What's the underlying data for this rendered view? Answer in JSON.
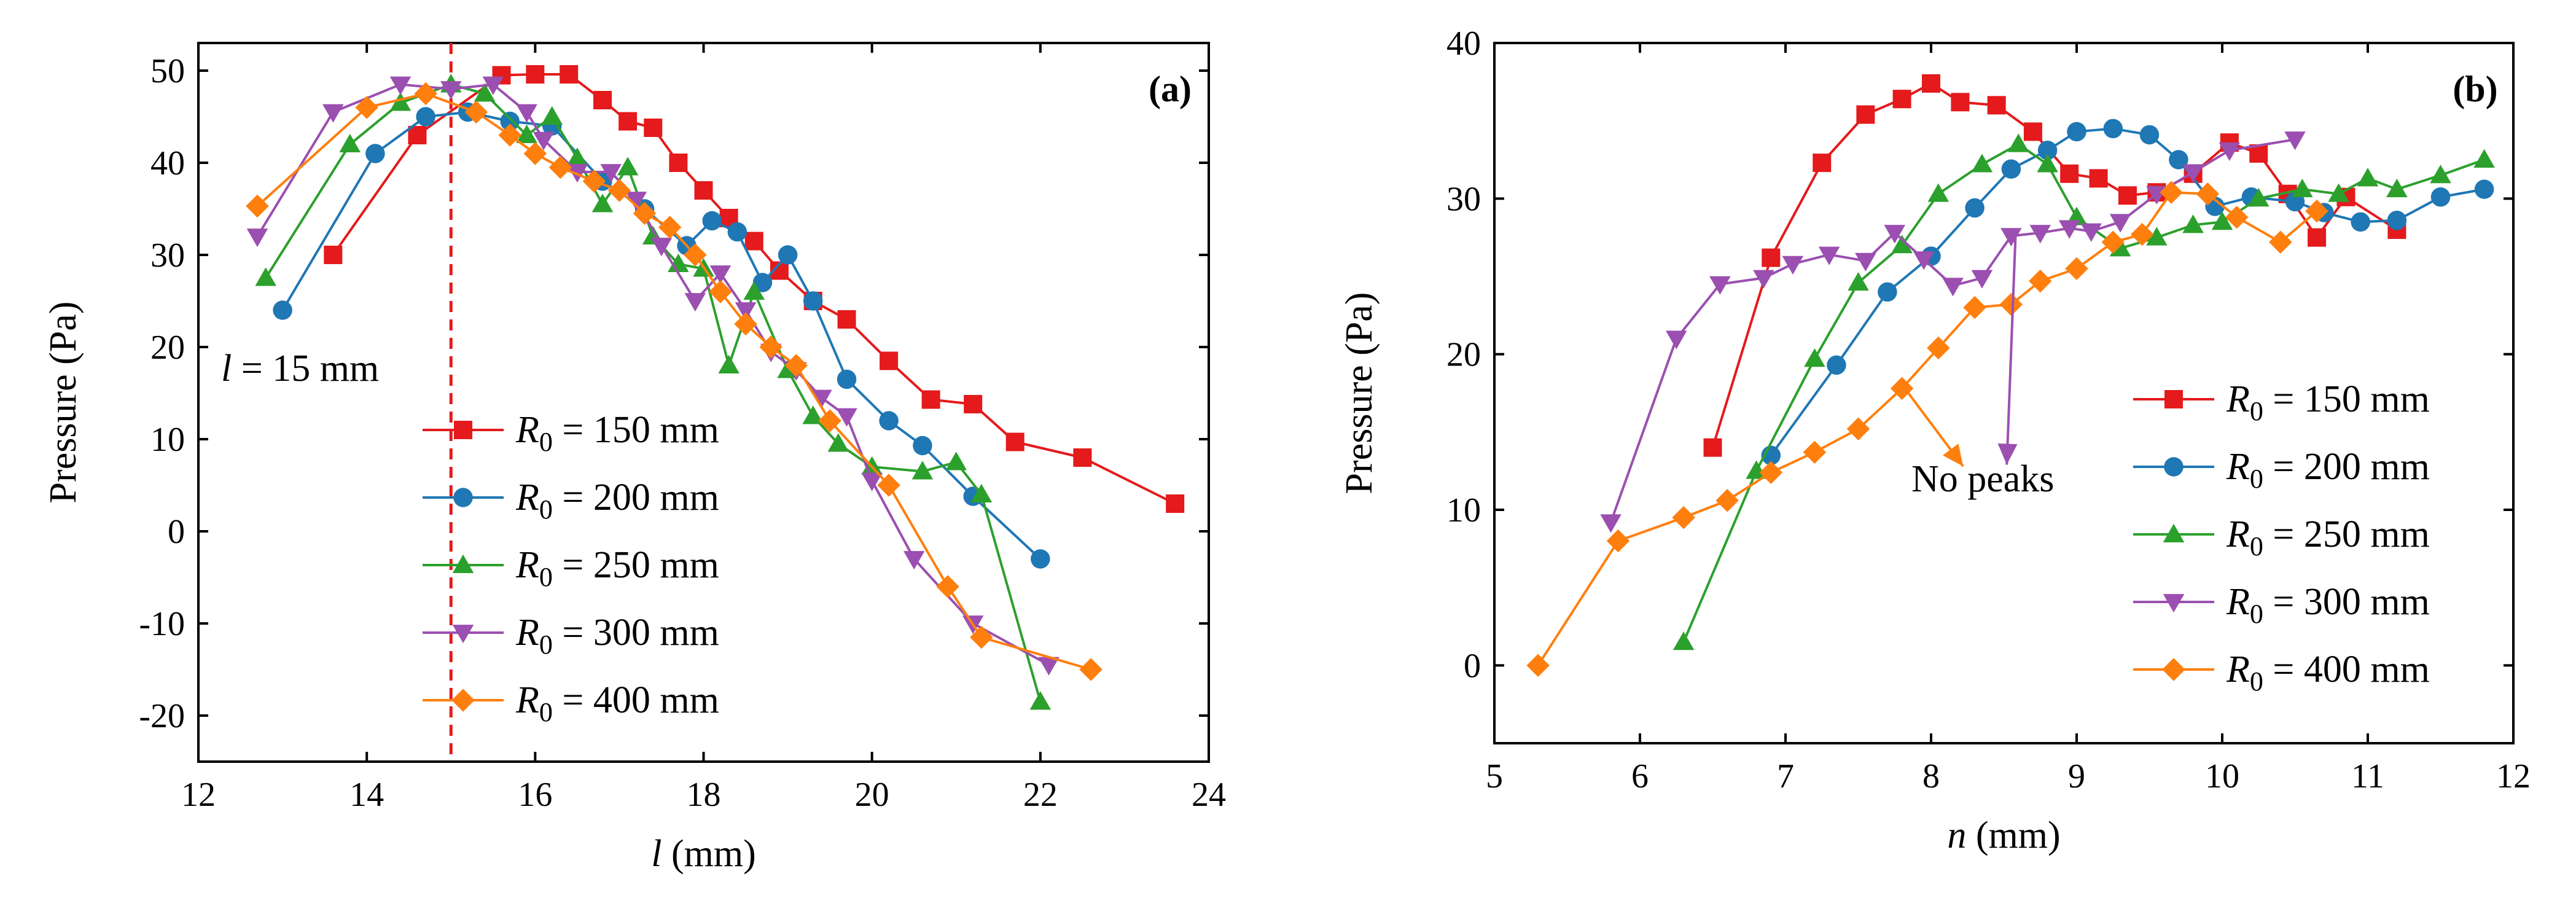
{
  "chart_data": [
    {
      "type": "line",
      "panel_label": "(a)",
      "xlabel_italic": "l",
      "xlabel_rest": " (mm)",
      "ylabel": "Pressure (Pa)",
      "xlim": [
        12,
        24
      ],
      "ylim": [
        -25,
        53
      ],
      "xticks": [
        12,
        14,
        16,
        18,
        20,
        22,
        24
      ],
      "yticks": [
        -20,
        -10,
        0,
        10,
        20,
        30,
        40,
        50
      ],
      "grid": false,
      "legend_position": "bottom-center",
      "vline": {
        "x": 15,
        "color": "#e41a1c",
        "style": "dashed"
      },
      "annotations": [
        {
          "text_italic": "l",
          "text_rest": " = 15 mm",
          "at": [
            14.1,
            17
          ]
        }
      ],
      "series": [
        {
          "name": "R0 = 150 mm",
          "legend_base": "R",
          "legend_sub": "0",
          "legend_rest": " = 150 mm",
          "color": "#e41a1c",
          "marker": "square",
          "x": [
            13.6,
            14.6,
            15.6,
            16.0,
            16.4,
            16.8,
            17.1,
            17.4,
            17.7,
            18.0,
            18.3,
            18.6,
            18.9,
            19.3,
            19.7,
            20.2,
            20.7,
            21.2,
            21.7,
            22.5,
            23.6
          ],
          "y": [
            30,
            43,
            49.5,
            49.6,
            49.6,
            46.8,
            44.5,
            43.8,
            40,
            37,
            34,
            31.5,
            28.3,
            25,
            23,
            18.5,
            14.3,
            13.8,
            9.7,
            8,
            3
          ]
        },
        {
          "name": "R0 = 200 mm",
          "legend_base": "R",
          "legend_sub": "0",
          "legend_rest": " = 200 mm",
          "color": "#1f77b4",
          "marker": "circle",
          "x": [
            13.0,
            14.1,
            14.7,
            15.2,
            15.7,
            16.2,
            16.8,
            17.3,
            17.8,
            18.1,
            18.4,
            18.7,
            19.0,
            19.3,
            19.7,
            20.2,
            20.6,
            21.2,
            22.0
          ],
          "y": [
            24,
            41,
            45,
            45.5,
            44.5,
            44,
            38,
            35,
            31,
            33.7,
            32.5,
            27,
            30,
            25,
            16.5,
            12,
            9.3,
            3.8,
            -3
          ]
        },
        {
          "name": "R0 = 250 mm",
          "legend_base": "R",
          "legend_sub": "0",
          "legend_rest": " = 250 mm",
          "color": "#2ca02c",
          "marker": "triangle-up",
          "x": [
            12.8,
            13.8,
            14.4,
            15.0,
            15.4,
            15.9,
            16.2,
            16.5,
            16.8,
            17.1,
            17.4,
            17.7,
            18.0,
            18.3,
            18.6,
            19.0,
            19.3,
            19.6,
            20.0,
            20.6,
            21.0,
            21.3,
            22.0
          ],
          "y": [
            27.5,
            42,
            46.5,
            48.5,
            47.5,
            43,
            45,
            40.5,
            35.5,
            39.5,
            32,
            29,
            28.5,
            18,
            26,
            17.5,
            12.5,
            9.5,
            7,
            6.5,
            7.5,
            4,
            -18.5
          ]
        },
        {
          "name": "R0 = 300 mm",
          "legend_base": "R",
          "legend_sub": "0",
          "legend_rest": " = 300 mm",
          "color": "#9b4fb0",
          "marker": "triangle-down",
          "x": [
            12.7,
            13.6,
            14.4,
            15.0,
            15.5,
            15.9,
            16.1,
            16.5,
            16.9,
            17.2,
            17.5,
            17.9,
            18.2,
            18.5,
            18.8,
            19.1,
            19.4,
            19.7,
            20.0,
            20.5,
            21.2,
            22.1
          ],
          "y": [
            32,
            45.5,
            48.5,
            48,
            48.5,
            45.5,
            42.5,
            39,
            39,
            36,
            31,
            25,
            28,
            24,
            19.5,
            17.5,
            14.5,
            12.5,
            5.5,
            -3,
            -10,
            -14.5
          ]
        },
        {
          "name": "R0 = 400 mm",
          "legend_base": "R",
          "legend_sub": "0",
          "legend_rest": " = 400 mm",
          "color": "#ff7f0e",
          "marker": "diamond",
          "x": [
            12.7,
            14.0,
            14.7,
            15.3,
            15.7,
            16.0,
            16.3,
            16.7,
            17.0,
            17.3,
            17.6,
            17.9,
            18.2,
            18.5,
            18.8,
            19.1,
            19.5,
            20.2,
            20.9,
            21.3,
            22.6
          ],
          "y": [
            35.3,
            46,
            47.5,
            45.5,
            43,
            41,
            39.5,
            38,
            37,
            34.5,
            33,
            30,
            26,
            22.5,
            20,
            18,
            12,
            5,
            -6,
            -11.5,
            -15
          ]
        }
      ]
    },
    {
      "type": "line",
      "panel_label": "(b)",
      "xlabel_italic": "n",
      "xlabel_rest": " (mm)",
      "ylabel": "Pressure (Pa)",
      "xlim": [
        5,
        12
      ],
      "ylim": [
        -5,
        40
      ],
      "xticks": [
        5,
        6,
        7,
        8,
        9,
        10,
        11,
        12
      ],
      "yticks": [
        0,
        10,
        20,
        30,
        40
      ],
      "grid": false,
      "legend_position": "right",
      "annotations": [
        {
          "text": "No peaks",
          "at": [
            8.4,
            11.2
          ]
        }
      ],
      "series": [
        {
          "name": "R0 = 150 mm",
          "legend_base": "R",
          "legend_sub": "0",
          "legend_rest": " = 150 mm",
          "color": "#e41a1c",
          "marker": "square",
          "x": [
            6.5,
            6.9,
            7.25,
            7.55,
            7.8,
            8.0,
            8.2,
            8.45,
            8.7,
            8.95,
            9.15,
            9.35,
            9.55,
            9.8,
            10.05,
            10.25,
            10.45,
            10.65,
            10.85,
            11.2
          ],
          "y": [
            14,
            26.2,
            32.3,
            35.4,
            36.4,
            37.4,
            36.2,
            36,
            34.3,
            31.6,
            31.3,
            30.2,
            30.4,
            31.6,
            33.6,
            32.9,
            30.3,
            27.5,
            30.1,
            28
          ]
        },
        {
          "name": "R0 = 200 mm",
          "legend_base": "R",
          "legend_sub": "0",
          "legend_rest": " = 200 mm",
          "color": "#1f77b4",
          "marker": "circle",
          "x": [
            6.9,
            7.35,
            7.7,
            8.0,
            8.3,
            8.55,
            8.8,
            9.0,
            9.25,
            9.5,
            9.7,
            9.95,
            10.2,
            10.5,
            10.7,
            10.95,
            11.2,
            11.5,
            11.8
          ],
          "y": [
            13.5,
            19.3,
            24,
            26.3,
            29.4,
            31.9,
            33.1,
            34.3,
            34.5,
            34.1,
            32.5,
            29.5,
            30.1,
            29.8,
            29.1,
            28.5,
            28.6,
            30.1,
            30.6
          ]
        },
        {
          "name": "R0 = 250 mm",
          "legend_base": "R",
          "legend_sub": "0",
          "legend_rest": " = 250 mm",
          "color": "#2ca02c",
          "marker": "triangle-up",
          "x": [
            6.3,
            6.8,
            7.2,
            7.5,
            7.8,
            8.05,
            8.35,
            8.6,
            8.8,
            9.0,
            9.3,
            9.55,
            9.8,
            10.0,
            10.25,
            10.55,
            10.8,
            11.0,
            11.2,
            11.5,
            11.8
          ],
          "y": [
            1.5,
            12.5,
            19.7,
            24.6,
            27,
            30.3,
            32.2,
            33.5,
            32.2,
            28.8,
            26.8,
            27.5,
            28.3,
            28.5,
            30,
            30.6,
            30.3,
            31.3,
            30.6,
            31.5,
            32.5
          ]
        },
        {
          "name": "R0 = 300 mm",
          "legend_base": "R",
          "legend_sub": "0",
          "legend_rest": " = 300 mm",
          "color": "#9b4fb0",
          "marker": "triangle-down",
          "x": [
            5.8,
            6.25,
            6.55,
            6.85,
            7.05,
            7.3,
            7.55,
            7.75,
            7.95,
            8.15,
            8.35,
            8.55,
            8.75,
            8.95,
            9.1,
            9.3,
            9.55,
            9.8,
            10.05,
            10.5
          ],
          "y": [
            9.2,
            21,
            24.5,
            24.9,
            25.8,
            26.4,
            26,
            27.8,
            26.1,
            24.4,
            24.9,
            27.6,
            27.8,
            28.1,
            27.9,
            28.5,
            30.3,
            31.7,
            33.1,
            33.8
          ]
        },
        {
          "name": "R0 = 400 mm",
          "legend_base": "R",
          "legend_sub": "0",
          "legend_rest": " = 400 mm",
          "color": "#ff7f0e",
          "marker": "diamond",
          "x": [
            5.3,
            5.85,
            6.3,
            6.6,
            6.9,
            7.2,
            7.5,
            7.8,
            8.05,
            8.3,
            8.55,
            8.75,
            9.0,
            9.25,
            9.45,
            9.65,
            9.9,
            10.1,
            10.4,
            10.65
          ],
          "y": [
            0,
            8,
            9.5,
            10.6,
            12.4,
            13.7,
            15.2,
            17.8,
            20.4,
            23,
            23.2,
            24.7,
            25.5,
            27.2,
            27.7,
            30.4,
            30.3,
            28.8,
            27.2,
            29.2
          ]
        }
      ]
    }
  ]
}
